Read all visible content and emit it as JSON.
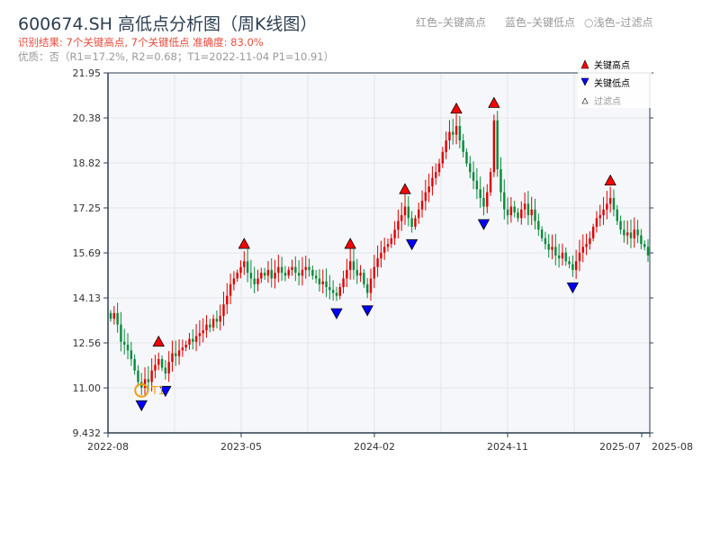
{
  "title": "600674.SH 高低点分析图（周K线图）",
  "result_line": "识别结果: 7个关键高点, 7个关键低点  准确度: 83.0%",
  "quality_line": "优质：否（R1=17.2%, R2=0.68；T1=2022-11-04 P1=10.91）",
  "hints": {
    "red": "红色–关键高点",
    "blue": "蓝色–关键低点",
    "light": "○浅色–过滤点"
  },
  "colors": {
    "up": "#e00000",
    "down": "#0a8a3a",
    "high_marker": "#ff0000",
    "low_marker": "#0000ff",
    "t1": "#f39c12",
    "plot_bg": "#f5f7fa"
  },
  "chart_data": {
    "type": "candlestick",
    "frequency": "weekly",
    "ylim": [
      9.432,
      21.95
    ],
    "y_ticks": [
      "9.432",
      "11.00",
      "12.56",
      "14.13",
      "15.69",
      "17.25",
      "18.82",
      "20.38",
      "21.95"
    ],
    "x_ticks": [
      "2022-08",
      "2023-05",
      "2024-02",
      "2024-11",
      "2025-07",
      "2025-08"
    ],
    "grid": true,
    "legend_position": "top-right",
    "legend": [
      "关键高点",
      "关键低点",
      "过滤点"
    ],
    "close": [
      13.4,
      13.6,
      13.2,
      12.6,
      12.5,
      12.3,
      12.0,
      11.6,
      11.2,
      11.0,
      11.3,
      11.2,
      11.6,
      11.8,
      12.0,
      11.7,
      11.5,
      11.9,
      12.2,
      12.1,
      12.3,
      12.4,
      12.5,
      12.7,
      12.6,
      12.8,
      12.9,
      13.0,
      13.2,
      13.1,
      13.4,
      13.3,
      13.5,
      13.9,
      14.2,
      14.6,
      14.8,
      15.0,
      15.2,
      15.4,
      15.0,
      14.8,
      14.6,
      14.8,
      15.0,
      14.9,
      15.1,
      14.8,
      15.0,
      15.2,
      15.0,
      14.9,
      15.1,
      15.2,
      15.0,
      14.9,
      15.1,
      15.2,
      15.1,
      14.9,
      14.8,
      14.6,
      14.7,
      14.5,
      14.4,
      14.3,
      14.2,
      14.5,
      14.8,
      15.1,
      15.4,
      15.1,
      14.9,
      15.0,
      14.6,
      14.3,
      14.8,
      15.2,
      15.5,
      15.7,
      15.9,
      16.0,
      16.2,
      16.5,
      16.8,
      17.0,
      17.3,
      16.9,
      16.6,
      16.9,
      17.2,
      17.5,
      17.8,
      18.0,
      18.3,
      18.5,
      18.8,
      19.2,
      19.6,
      19.9,
      19.8,
      20.1,
      19.6,
      19.2,
      18.8,
      18.5,
      18.2,
      17.9,
      17.6,
      17.3,
      17.8,
      18.5,
      20.3,
      18.6,
      17.8,
      17.2,
      17.0,
      17.3,
      17.1,
      16.9,
      17.2,
      17.4,
      17.0,
      17.2,
      16.8,
      16.5,
      16.2,
      16.0,
      15.8,
      15.9,
      15.6,
      15.5,
      15.7,
      15.4,
      15.3,
      15.1,
      15.4,
      15.7,
      15.9,
      16.0,
      16.2,
      16.6,
      16.9,
      17.0,
      17.2,
      17.4,
      17.6,
      17.2,
      16.8,
      16.5,
      16.3,
      16.4,
      16.2,
      16.5,
      16.3,
      16.0,
      15.9,
      15.6
    ],
    "key_high_weeks": [
      14,
      39,
      70,
      86,
      101,
      112,
      146
    ],
    "key_low_weeks": [
      9,
      16,
      66,
      75,
      88,
      109,
      135
    ],
    "t1": {
      "label": "T1",
      "date": "2022-11-04",
      "price": 10.91
    }
  }
}
